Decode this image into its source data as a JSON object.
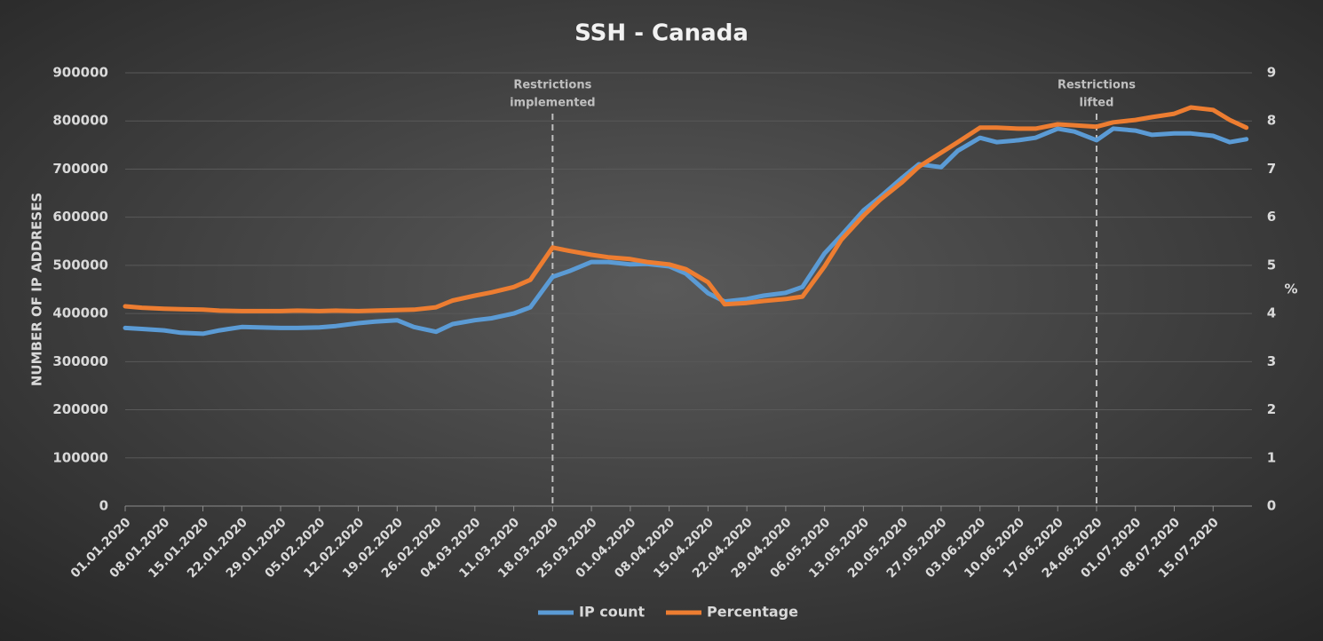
{
  "chart_data": {
    "type": "line",
    "title": "SSH - Canada",
    "ylabel": "NUMBER OF IP ADDRESES",
    "y2label": "%",
    "x": [
      "01.01.2020",
      "04.01.2020",
      "08.01.2020",
      "11.01.2020",
      "15.01.2020",
      "18.01.2020",
      "22.01.2020",
      "25.01.2020",
      "29.01.2020",
      "01.02.2020",
      "05.02.2020",
      "08.02.2020",
      "12.02.2020",
      "15.02.2020",
      "19.02.2020",
      "22.02.2020",
      "26.02.2020",
      "29.02.2020",
      "04.03.2020",
      "07.03.2020",
      "11.03.2020",
      "14.03.2020",
      "18.03.2020",
      "21.03.2020",
      "25.03.2020",
      "28.03.2020",
      "01.04.2020",
      "04.04.2020",
      "08.04.2020",
      "11.04.2020",
      "15.04.2020",
      "18.04.2020",
      "22.04.2020",
      "25.04.2020",
      "29.04.2020",
      "02.05.2020",
      "06.05.2020",
      "09.05.2020",
      "13.05.2020",
      "16.05.2020",
      "20.05.2020",
      "23.05.2020",
      "27.05.2020",
      "30.05.2020",
      "03.06.2020",
      "06.06.2020",
      "10.06.2020",
      "13.06.2020",
      "17.06.2020",
      "20.06.2020",
      "24.06.2020",
      "27.06.2020",
      "01.07.2020",
      "04.07.2020",
      "08.07.2020",
      "11.07.2020",
      "15.07.2020",
      "18.07.2020",
      "21.07.2020"
    ],
    "series": [
      {
        "name": "IP count",
        "color": "#5b9bd5",
        "values": [
          370000,
          368000,
          365000,
          360000,
          358000,
          365000,
          372000,
          371000,
          370000,
          370000,
          371000,
          374000,
          380000,
          383000,
          386000,
          372000,
          362000,
          378000,
          386000,
          390000,
          400000,
          413000,
          476000,
          488000,
          507000,
          507000,
          502000,
          503000,
          498000,
          483000,
          442000,
          425000,
          430000,
          437000,
          443000,
          455000,
          525000,
          562000,
          614000,
          642000,
          682000,
          710000,
          704000,
          738000,
          765000,
          756000,
          760000,
          765000,
          784000,
          778000,
          760000,
          784000,
          780000,
          771000,
          774000,
          774000,
          769000,
          756000,
          762000
        ]
      },
      {
        "name": "Percentage",
        "color": "#ed7d31",
        "axis": "y2",
        "values": [
          4.15,
          4.12,
          4.1,
          4.09,
          4.08,
          4.06,
          4.05,
          4.05,
          4.05,
          4.06,
          4.05,
          4.06,
          4.05,
          4.06,
          4.07,
          4.08,
          4.13,
          4.27,
          4.37,
          4.44,
          4.55,
          4.7,
          5.37,
          5.3,
          5.22,
          5.17,
          5.13,
          5.07,
          5.02,
          4.92,
          4.65,
          4.19,
          4.22,
          4.26,
          4.3,
          4.35,
          4.98,
          5.53,
          6.03,
          6.36,
          6.73,
          7.05,
          7.34,
          7.56,
          7.86,
          7.86,
          7.84,
          7.84,
          7.93,
          7.91,
          7.88,
          7.97,
          8.02,
          8.08,
          8.15,
          8.28,
          8.23,
          8.02,
          7.86
        ]
      }
    ],
    "xlim": [
      "01.01.2020",
      "22.07.2020"
    ],
    "xticks": [
      "01.01.2020",
      "08.01.2020",
      "15.01.2020",
      "22.01.2020",
      "29.01.2020",
      "05.02.2020",
      "12.02.2020",
      "19.02.2020",
      "26.02.2020",
      "04.03.2020",
      "11.03.2020",
      "18.03.2020",
      "25.03.2020",
      "01.04.2020",
      "08.04.2020",
      "15.04.2020",
      "22.04.2020",
      "29.04.2020",
      "06.05.2020",
      "13.05.2020",
      "20.05.2020",
      "27.05.2020",
      "03.06.2020",
      "10.06.2020",
      "17.06.2020",
      "24.06.2020",
      "01.07.2020",
      "08.07.2020",
      "15.07.2020"
    ],
    "ylim": [
      0,
      900000
    ],
    "yticks": [
      0,
      100000,
      200000,
      300000,
      400000,
      500000,
      600000,
      700000,
      800000,
      900000
    ],
    "y2lim": [
      0,
      9
    ],
    "y2ticks": [
      0,
      1,
      2,
      3,
      4,
      5,
      6,
      7,
      8,
      9
    ],
    "grid": true,
    "legend": "bottom",
    "annotations": [
      {
        "x": "18.03.2020",
        "text": [
          "Restrictions",
          "implemented"
        ]
      },
      {
        "x": "24.06.2020",
        "text": [
          "Restrictions",
          "lifted"
        ]
      }
    ]
  }
}
